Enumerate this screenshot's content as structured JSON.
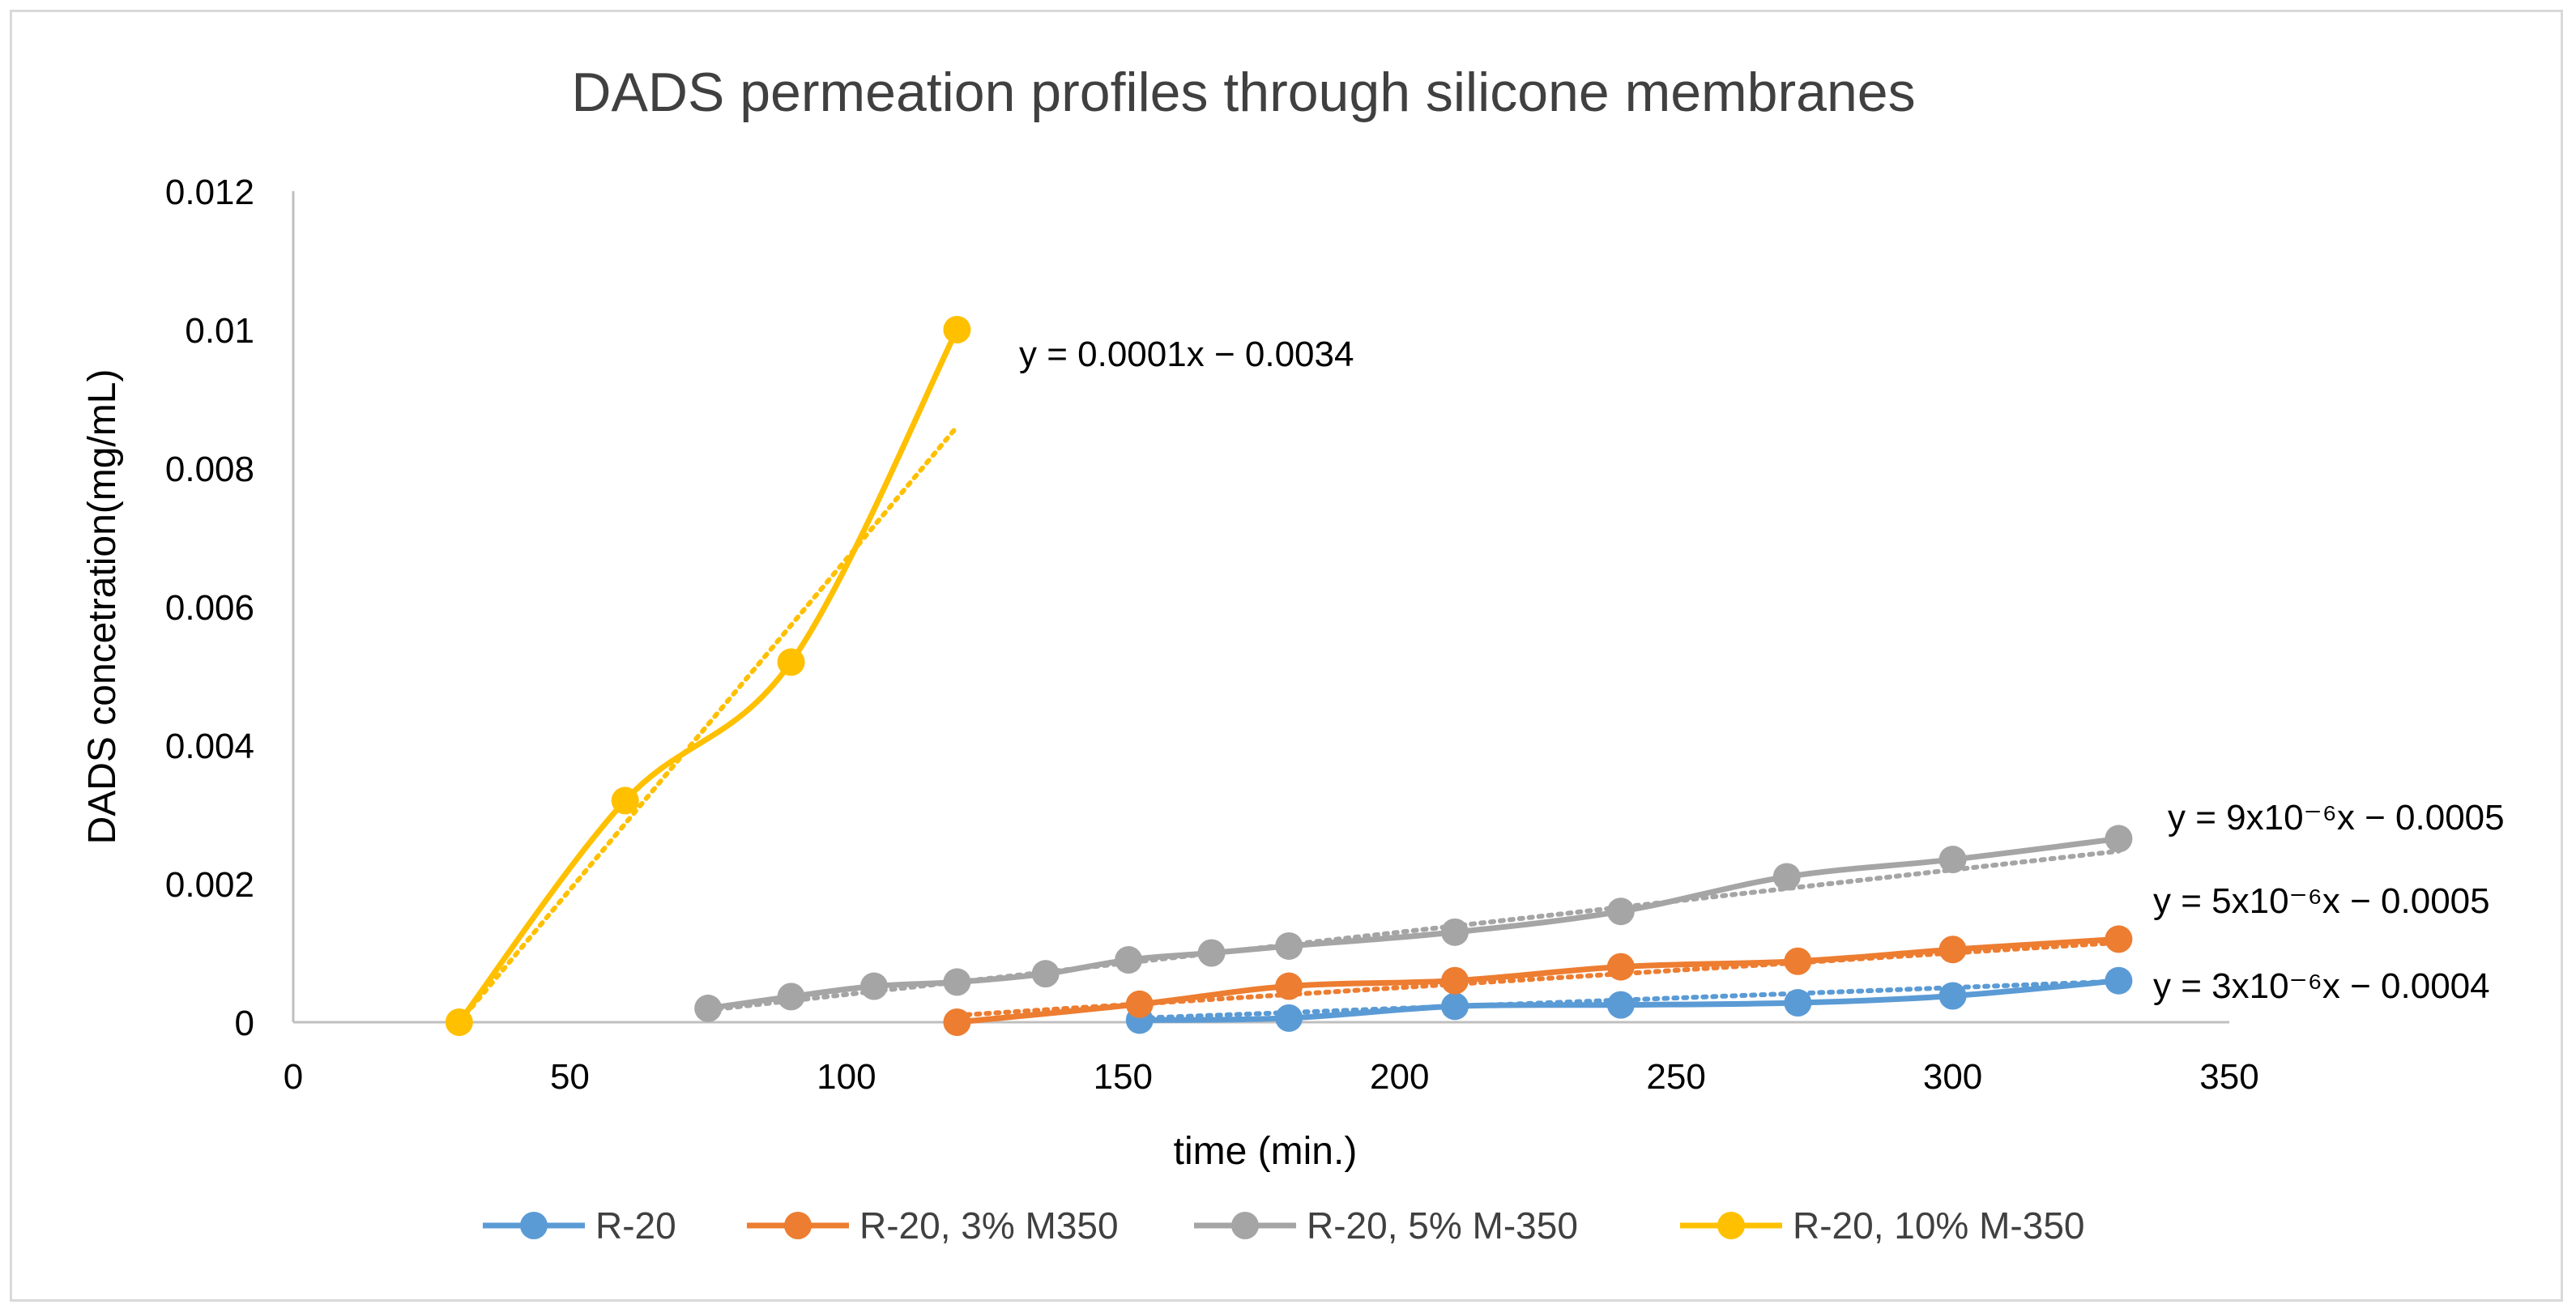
{
  "chart_data": {
    "type": "line",
    "title": "DADS permeation profiles through silicone membranes",
    "xlabel": "time (min.)",
    "ylabel": "DADS concetration(mg/mL)",
    "xlim": [
      0,
      350
    ],
    "ylim": [
      0,
      0.012
    ],
    "xticks": [
      0,
      50,
      100,
      150,
      200,
      250,
      300,
      350
    ],
    "yticks": [
      0,
      0.002,
      0.004,
      0.006,
      0.008,
      0.01,
      0.012
    ],
    "xtick_labels": [
      "0",
      "50",
      "100",
      "150",
      "200",
      "250",
      "300",
      "350"
    ],
    "ytick_labels": [
      "0",
      "0.002",
      "0.004",
      "0.006",
      "0.008",
      "0.01",
      "0.012"
    ],
    "grid": false,
    "legend_position": "bottom",
    "series": [
      {
        "name": "R-20",
        "color": "#5B9BD5",
        "x": [
          153,
          180,
          210,
          240,
          272,
          300,
          330
        ],
        "y": [
          3e-05,
          6e-05,
          0.00023,
          0.00025,
          0.00028,
          0.00038,
          0.0006
        ],
        "trendline": {
          "slope": 3e-06,
          "intercept": -0.0004,
          "x_range": [
            153,
            330
          ]
        },
        "equation": "y = 3x10⁻⁶x − 0.0004"
      },
      {
        "name": "R-20, 3% M350",
        "color": "#ED7D31",
        "x": [
          120,
          153,
          180,
          210,
          240,
          272,
          300,
          330
        ],
        "y": [
          0.0,
          0.00026,
          0.00052,
          0.0006,
          0.0008,
          0.00088,
          0.00105,
          0.0012
        ],
        "trendline": {
          "slope": 5e-06,
          "intercept": -0.0005,
          "x_range": [
            120,
            330
          ]
        },
        "equation": "y = 5x10⁻⁶x − 0.0005"
      },
      {
        "name": "R-20, 5% M-350",
        "color": "#A5A5A5",
        "x": [
          75,
          90,
          105,
          120,
          136,
          151,
          166,
          180,
          210,
          240,
          270,
          300,
          330
        ],
        "y": [
          0.0002,
          0.00037,
          0.00052,
          0.00058,
          0.0007,
          0.0009,
          0.001,
          0.0011,
          0.0013,
          0.0016,
          0.0021,
          0.00235,
          0.00265
        ],
        "trendline": {
          "slope": 9e-06,
          "intercept": -0.0005,
          "x_range": [
            75,
            330
          ]
        },
        "equation": "y = 9x10⁻⁶x − 0.0005"
      },
      {
        "name": "R-20, 10% M-350",
        "color": "#FFC000",
        "x": [
          30,
          60,
          90,
          120
        ],
        "y": [
          0.0,
          0.0032,
          0.0052,
          0.01
        ],
        "trendline": {
          "slope": 0.0001,
          "intercept": -0.0034,
          "x_range": [
            30,
            120
          ]
        },
        "equation": "y = 0.0001x − 0.0034"
      }
    ]
  }
}
